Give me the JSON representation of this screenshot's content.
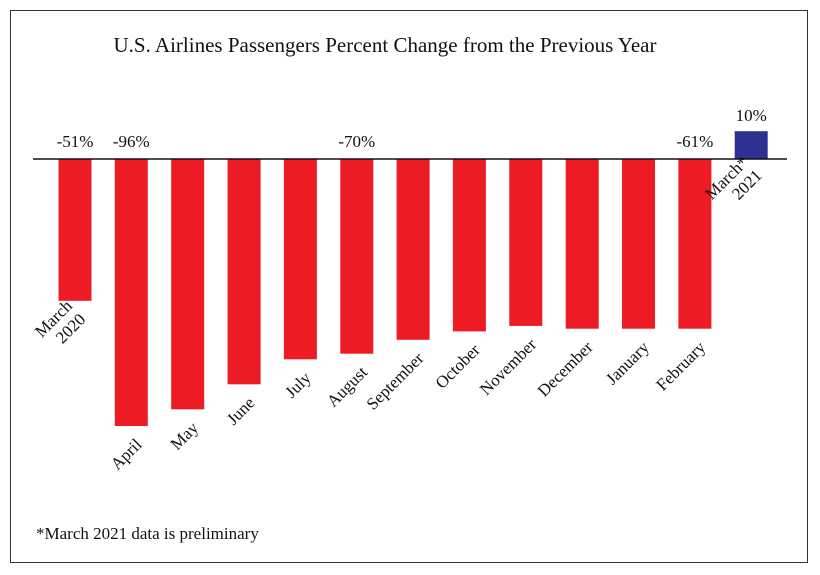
{
  "chart_data": {
    "type": "bar",
    "title": "U.S. Airlines Passengers Percent Change from the Previous Year",
    "xlabel": "",
    "ylabel": "",
    "ylim": [
      -96,
      10
    ],
    "grid": false,
    "legend": "none",
    "categories": [
      [
        "March",
        "2020"
      ],
      [
        "April"
      ],
      [
        "May"
      ],
      [
        "June"
      ],
      [
        "July"
      ],
      [
        "August"
      ],
      [
        "September"
      ],
      [
        "October"
      ],
      [
        "November"
      ],
      [
        "December"
      ],
      [
        "January"
      ],
      [
        "February"
      ],
      [
        "March*",
        "2021"
      ]
    ],
    "values": [
      -51,
      -96,
      -90,
      -81,
      -72,
      -70,
      -65,
      -62,
      -60,
      -61,
      -61,
      -61,
      10
    ],
    "data_labels": [
      "-51%",
      "-96%",
      "",
      "",
      "",
      "-70%",
      "",
      "",
      "",
      "",
      "",
      "-61%",
      "10%"
    ],
    "colors": {
      "negative": "#ed1c24",
      "positive": "#2e3192",
      "axis": "#111111"
    },
    "footnote": "*March 2021 data is preliminary"
  }
}
